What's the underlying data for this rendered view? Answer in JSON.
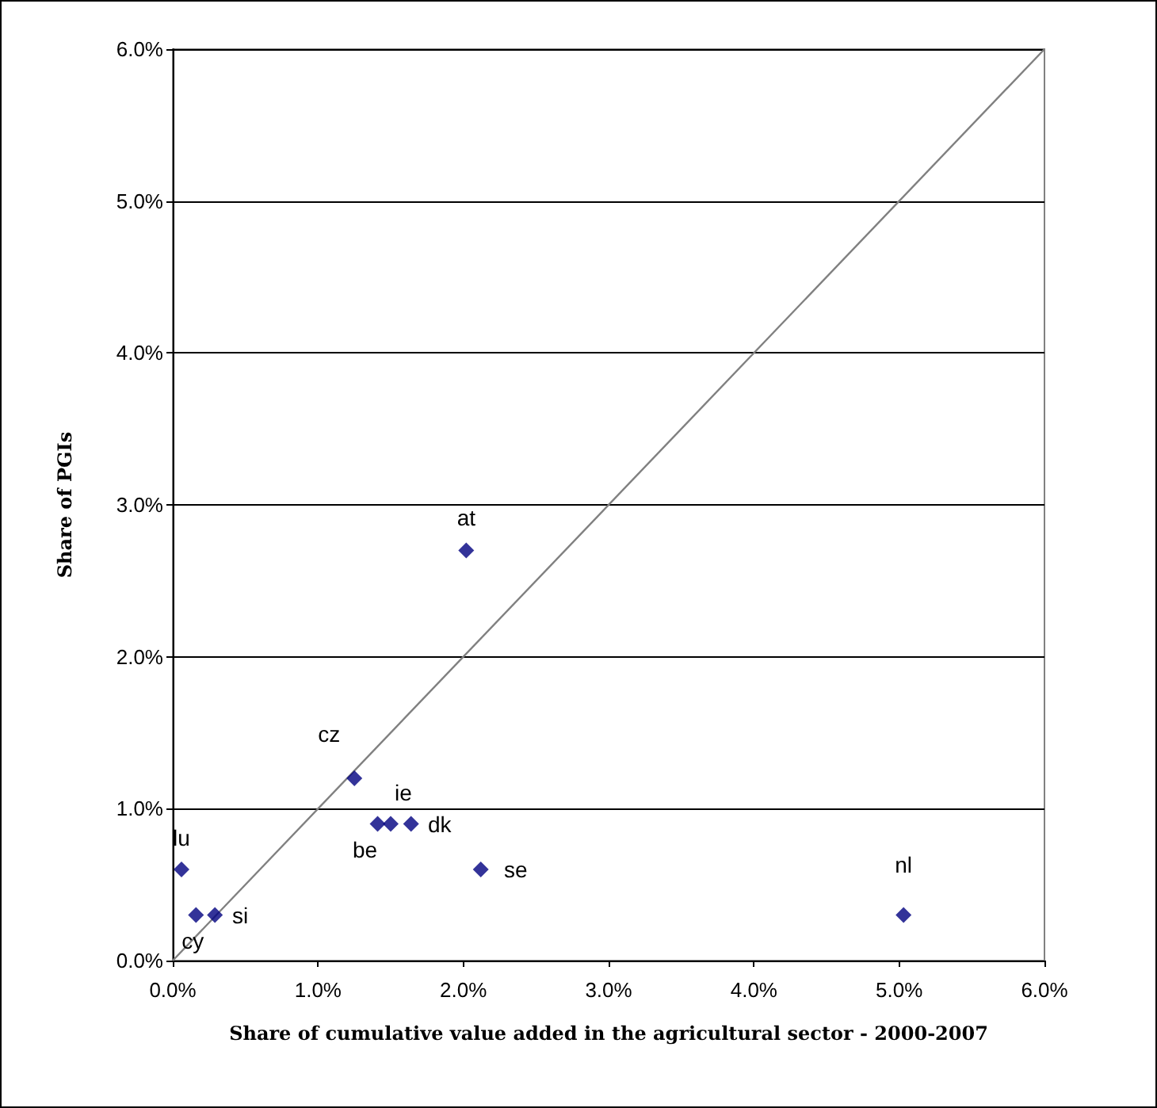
{
  "chart_data": {
    "type": "scatter",
    "xlabel": "Share of cumulative value added in the agricultural sector - 2000-2007",
    "ylabel": "Share of PGIs",
    "series": [
      {
        "color": "#000080",
        "x": [
          0.06,
          0.16,
          0.29,
          1.25,
          1.41,
          1.5,
          1.64,
          2.12,
          2.02,
          5.03
        ],
        "values": [
          0.6,
          0.3,
          0.3,
          1.2,
          0.9,
          0.9,
          0.9,
          0.6,
          2.7,
          0.3
        ]
      },
      {
        "type": "line",
        "color": "#808080",
        "x": [
          0,
          6
        ],
        "values": [
          0,
          6
        ],
        "marker": "none"
      }
    ],
    "annotations": [
      {
        "text": "lu",
        "x": 0.06,
        "y": 0.6
      },
      {
        "text": "cy",
        "x": 0.16,
        "y": 0.3
      },
      {
        "text": "si",
        "x": 0.29,
        "y": 0.3
      },
      {
        "text": "cz",
        "x": 1.25,
        "y": 1.2
      },
      {
        "text": "be",
        "x": 1.41,
        "y": 0.9
      },
      {
        "text": "ie",
        "x": 1.5,
        "y": 0.9
      },
      {
        "text": "dk",
        "x": 1.64,
        "y": 0.9
      },
      {
        "text": "se",
        "x": 2.12,
        "y": 0.6
      },
      {
        "text": "at",
        "x": 2.02,
        "y": 2.7
      },
      {
        "text": "nl",
        "x": 5.03,
        "y": 0.3
      }
    ],
    "xlim": [
      0,
      6
    ],
    "ylim": [
      0,
      6
    ],
    "xticks": [
      {
        "value": 0,
        "label": "0.0%"
      },
      {
        "value": 1,
        "label": "1.0%"
      },
      {
        "value": 2,
        "label": "2.0%"
      },
      {
        "value": 3,
        "label": "3.0%"
      },
      {
        "value": 4,
        "label": "4.0%"
      },
      {
        "value": 5,
        "label": "5.0%"
      },
      {
        "value": 6,
        "label": "6.0%"
      }
    ],
    "yticks": [
      {
        "value": 0,
        "label": "0.0%"
      },
      {
        "value": 1,
        "label": "1.0%"
      },
      {
        "value": 2,
        "label": "2.0%"
      },
      {
        "value": 3,
        "label": "3.0%"
      },
      {
        "value": 4,
        "label": "4.0%"
      },
      {
        "value": 5,
        "label": "5.0%"
      },
      {
        "value": 6,
        "label": "6.0%"
      }
    ],
    "grid": "y",
    "marker": "diamond"
  }
}
